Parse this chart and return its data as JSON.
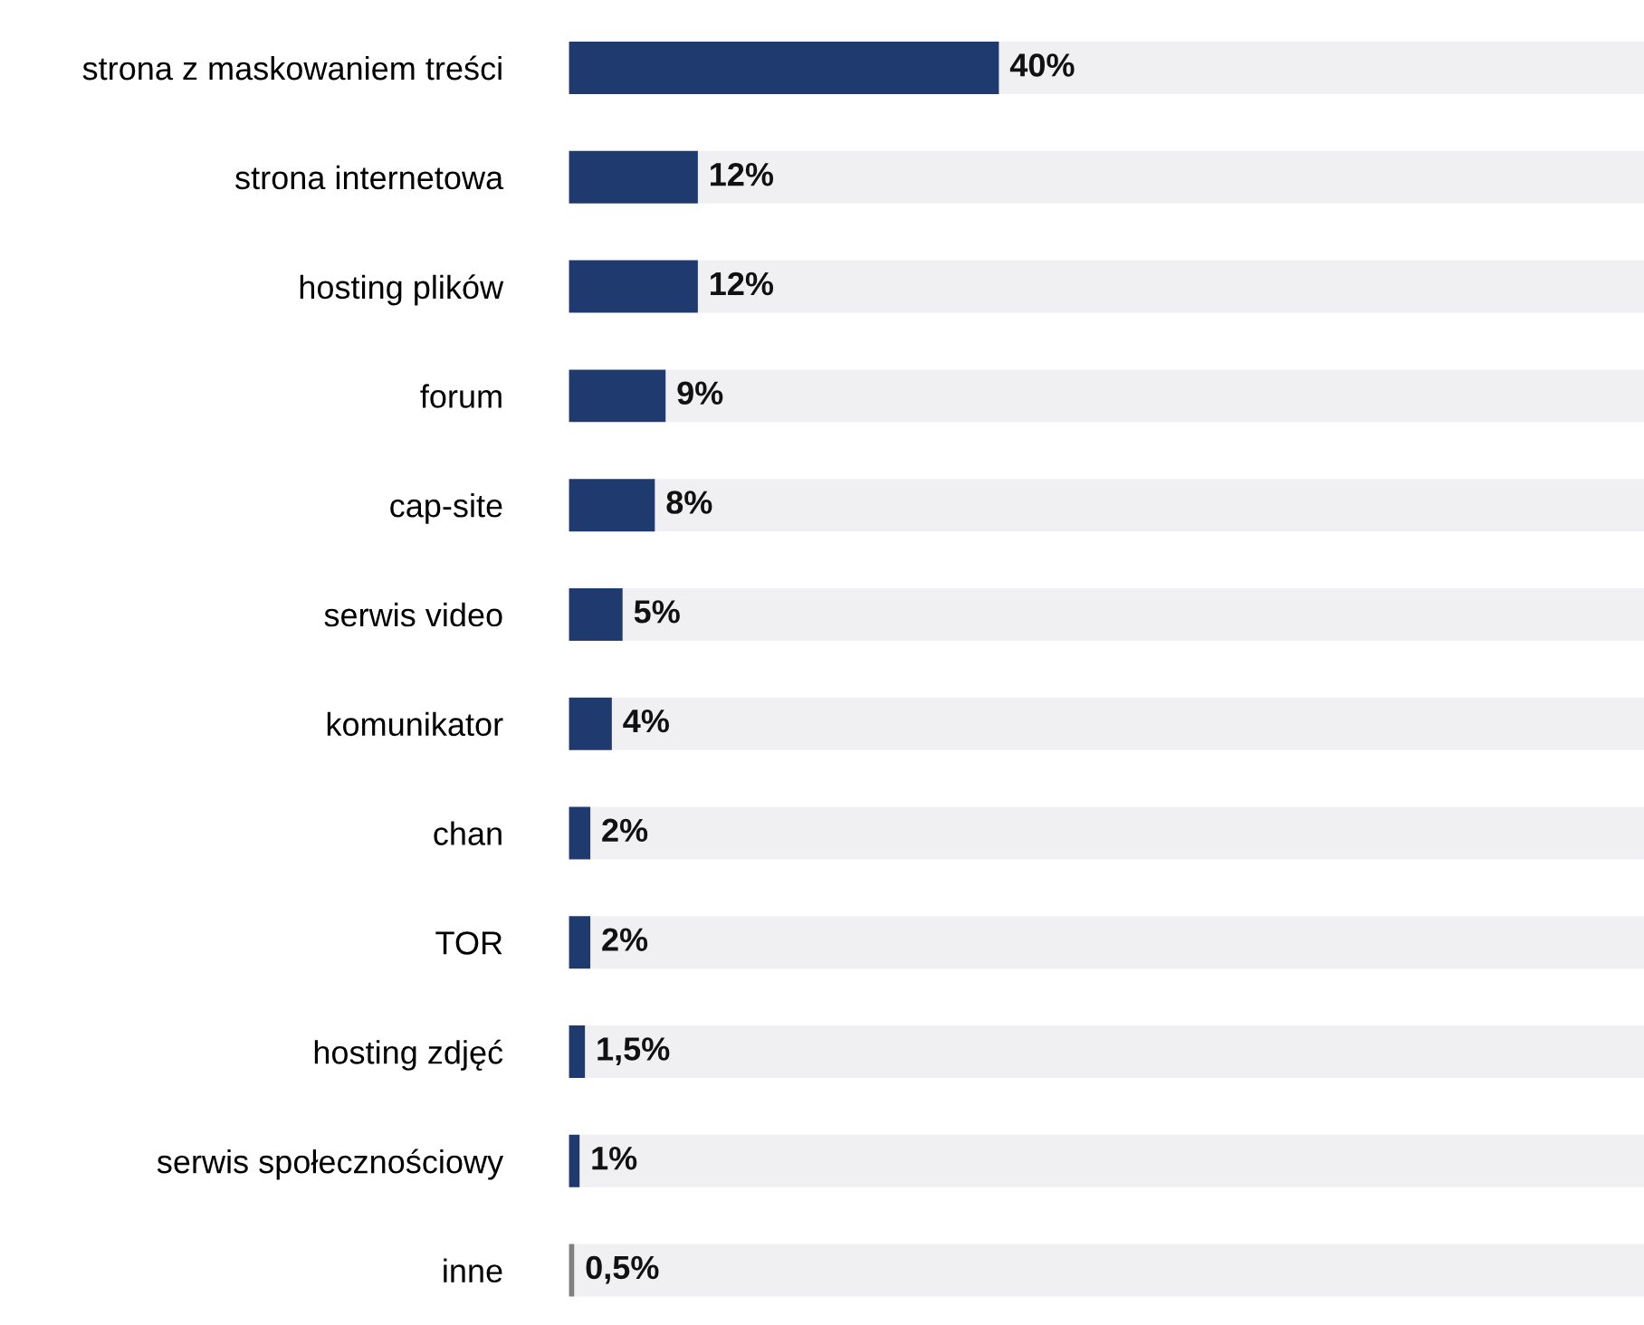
{
  "chart_data": {
    "type": "bar",
    "orientation": "horizontal",
    "stacked": true,
    "categories": [
      "strona z maskowaniem treści",
      "strona internetowa",
      "hosting plików",
      "forum",
      "cap-site",
      "serwis video",
      "komunikator",
      "chan",
      "TOR",
      "hosting zdjęć",
      "serwis społecznościowy",
      "inne"
    ],
    "series": [
      {
        "colors": [
          "#1f3a6e",
          "#1f3a6e",
          "#1f3a6e",
          "#1f3a6e",
          "#1f3a6e",
          "#1f3a6e",
          "#1f3a6e",
          "#1f3a6e",
          "#1f3a6e",
          "#1f3a6e",
          "#1f3a6e",
          "#808080"
        ],
        "values": [
          40,
          12,
          12,
          9,
          8,
          5,
          4,
          2,
          2,
          1.5,
          1,
          0.5
        ],
        "value_labels": [
          "40%",
          "12%",
          "12%",
          "9%",
          "8%",
          "5%",
          "4%",
          "2%",
          "2%",
          "1,5%",
          "1%",
          "0,5%"
        ]
      },
      {
        "color": "#f0f0f2",
        "values": [
          60,
          88,
          88,
          91,
          92,
          95,
          96,
          98,
          98,
          98.5,
          99,
          99.5
        ]
      }
    ],
    "xlim": [
      0,
      100
    ],
    "tick_labels": "y",
    "grid": false
  }
}
